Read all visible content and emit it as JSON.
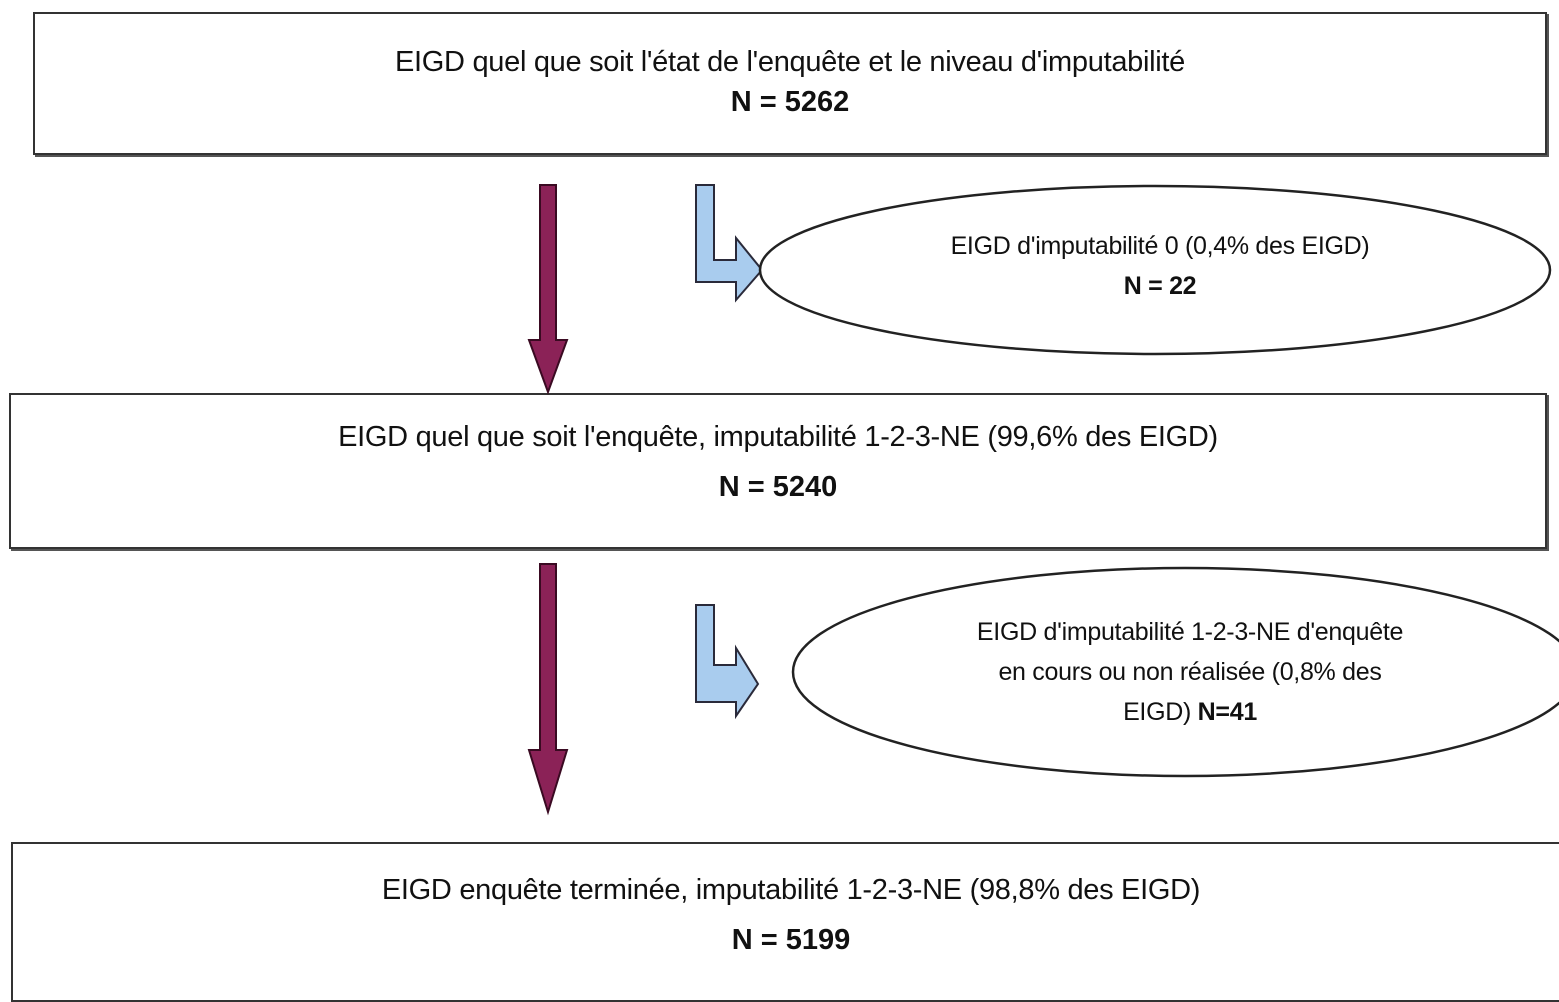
{
  "boxes": {
    "box1": {
      "line1": "EIGD quel que soit l'état de l'enquête et le niveau d'imputabilité",
      "line2": "N = 5262"
    },
    "box2": {
      "line1": "EIGD quel que soit l'enquête, imputabilité 1-2-3-NE (99,6% des EIGD)",
      "line2": "N = 5240"
    },
    "box3": {
      "line1": "EIGD enquête terminée, imputabilité 1-2-3-NE (98,8% des EIGD)",
      "line2": "N = 5199"
    }
  },
  "ellipses": {
    "ellipse1": {
      "line1": "EIGD  d'imputabilité 0 (0,4% des EIGD)",
      "line2": "N = 22"
    },
    "ellipse2": {
      "line1": "EIGD d'imputabilité 1-2-3-NE d'enquête",
      "line2": "en cours ou non réalisée  (0,8% des",
      "line3_prefix": "EIGD)",
      "line3_bold": "N=41"
    }
  },
  "colors": {
    "main_arrow": "#8b2257",
    "main_arrow_stroke": "#3a0a22",
    "side_arrow": "#a9ccee",
    "side_arrow_stroke": "#2a2a3a",
    "box_border": "#333333"
  },
  "icons": {
    "main_arrow": "down-arrow-icon",
    "side_arrow": "bent-right-arrow-icon"
  }
}
